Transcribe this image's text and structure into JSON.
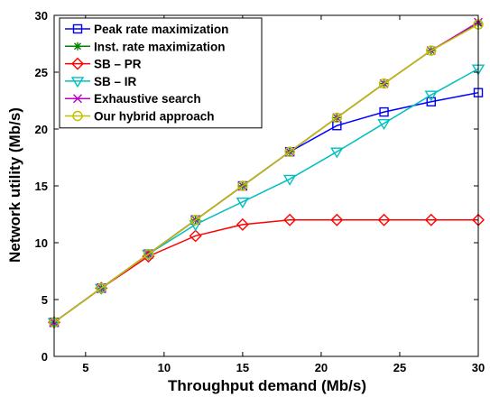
{
  "chart_data": {
    "type": "line",
    "xlabel": "Throughput demand (Mb/s)",
    "ylabel": "Network utility (Mb/s)",
    "xlim": [
      3,
      30
    ],
    "ylim": [
      0,
      30
    ],
    "xticks": [
      5,
      10,
      15,
      20,
      25,
      30
    ],
    "yticks": [
      0,
      5,
      10,
      15,
      20,
      25,
      30
    ],
    "grid": false,
    "legend_position": "top-left",
    "x": [
      3,
      6,
      9,
      12,
      15,
      18,
      21,
      24,
      27,
      30
    ],
    "series": [
      {
        "name": "Peak rate maximization",
        "color": "#0000ff",
        "marker": "square",
        "values": [
          3,
          6,
          9,
          12,
          15,
          18,
          20.3,
          21.5,
          22.4,
          23.2
        ]
      },
      {
        "name": "Inst. rate maximization",
        "color": "#008000",
        "marker": "asterisk",
        "values": [
          3,
          6,
          9,
          12,
          15,
          18,
          21,
          24,
          26.9,
          29.3
        ]
      },
      {
        "name": "SB – PR",
        "color": "#ff0000",
        "marker": "diamond",
        "values": [
          3,
          6,
          8.8,
          10.6,
          11.6,
          12,
          12,
          12,
          12,
          12
        ]
      },
      {
        "name": "SB – IR",
        "color": "#00bfbf",
        "marker": "triangle-down",
        "values": [
          3,
          6,
          9,
          11.6,
          13.6,
          15.6,
          18,
          20.5,
          23,
          25.3
        ]
      },
      {
        "name": "Exhaustive search",
        "color": "#bf00bf",
        "marker": "x",
        "values": [
          3,
          6,
          9,
          12,
          15,
          18,
          21,
          24,
          26.9,
          29.4
        ]
      },
      {
        "name": "Our hybrid approach",
        "color": "#bfbf00",
        "marker": "circle",
        "values": [
          3,
          6,
          9,
          12,
          15,
          18,
          21,
          24,
          26.9,
          29.2
        ]
      }
    ]
  }
}
